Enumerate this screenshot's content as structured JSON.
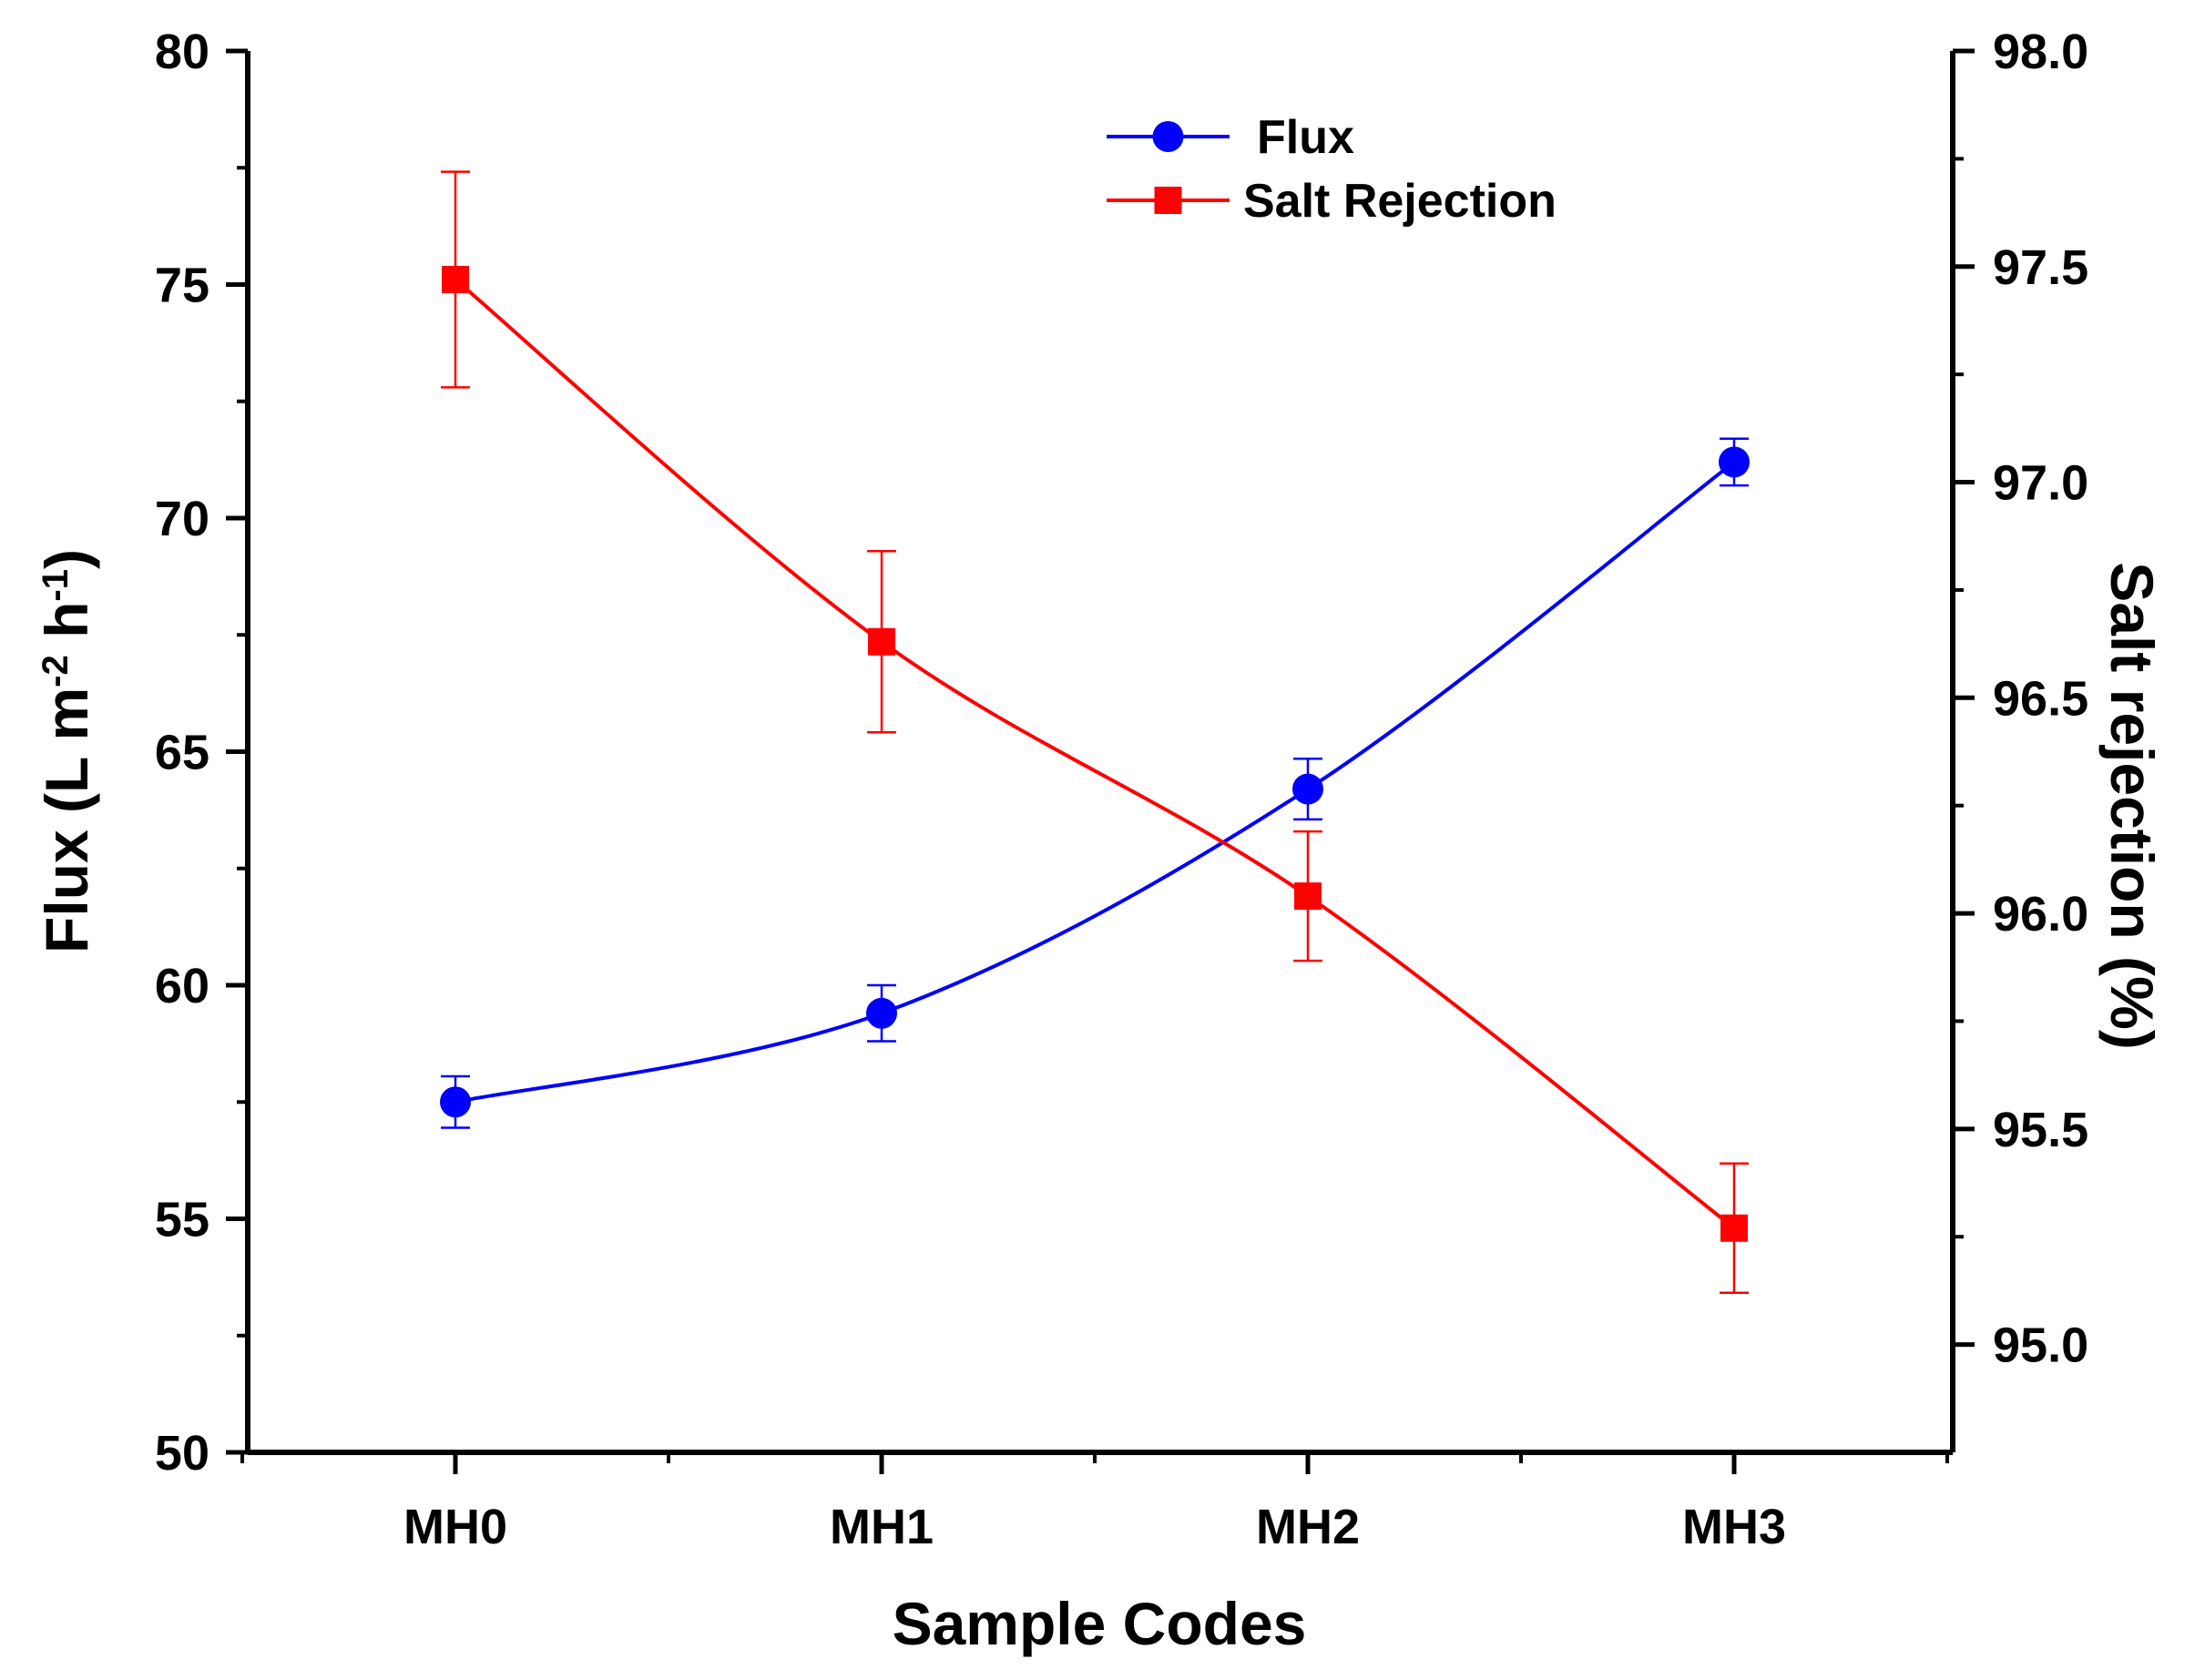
{
  "chart_data": {
    "type": "line",
    "title": "",
    "xlabel": "Sample Codes",
    "ylabel": {
      "prefix": "Flux (L m",
      "exp1": "-2",
      "mid": " h",
      "exp2": "-1",
      "suffix": ")"
    },
    "y2label": "Salt rejection (%)",
    "categories": [
      "MH0",
      "MH1",
      "MH2",
      "MH3"
    ],
    "ylim": [
      50,
      80
    ],
    "y2lim": [
      94.75,
      98.0
    ],
    "yticks": [
      "50",
      "55",
      "60",
      "65",
      "70",
      "75",
      "80"
    ],
    "y2ticks": [
      "95.0",
      "95.5",
      "96.0",
      "96.5",
      "97.0",
      "97.5",
      "98.0"
    ],
    "legend_position": "top-center",
    "series": [
      {
        "name": "Flux",
        "axis": "left",
        "color": "#0000ff",
        "marker": "circle",
        "values": [
          57.5,
          59.4,
          64.2,
          71.2
        ],
        "errors": [
          0.55,
          0.6,
          0.65,
          0.5
        ]
      },
      {
        "name": "Salt Rejection",
        "axis": "right",
        "color": "#ff0000",
        "marker": "square",
        "values": [
          97.47,
          96.63,
          96.04,
          95.27
        ],
        "errors": [
          0.25,
          0.21,
          0.15,
          0.15
        ]
      }
    ]
  }
}
